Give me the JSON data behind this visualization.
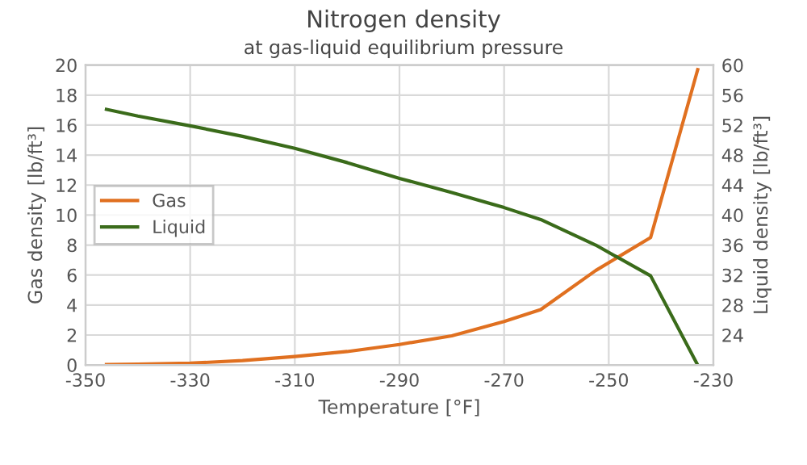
{
  "chart_data": {
    "type": "line",
    "title": "Nitrogen density",
    "subtitle": "at gas-liquid equilibrium pressure",
    "xlabel": "Temperature [°F]",
    "ylabel": "Gas density [lb/ft³]",
    "y2label": "Liquid density [lb/ft³]",
    "x": [
      -346,
      -340,
      -330,
      -320,
      -310,
      -300,
      -290,
      -280,
      -270,
      -263,
      -252.5,
      -242,
      -233
    ],
    "series": [
      {
        "name": "Gas",
        "color": "#e07020",
        "values": [
          0.03,
          0.06,
          0.12,
          0.3,
          0.57,
          0.9,
          1.37,
          1.95,
          2.9,
          3.7,
          6.3,
          8.5,
          19.7
        ]
      },
      {
        "name": "Liquid",
        "color": "#3a6b1a",
        "axis": "y2",
        "values": [
          54.1,
          53.2,
          51.9,
          50.5,
          48.9,
          47.0,
          44.9,
          43.0,
          41.0,
          39.4,
          36.0,
          31.9,
          20
        ]
      }
    ],
    "xlim": [
      -350,
      -230
    ],
    "xticks": [
      -350,
      -330,
      -310,
      -290,
      -270,
      -250,
      -230
    ],
    "ylim": [
      0,
      20
    ],
    "yticks": [
      0,
      2,
      4,
      6,
      8,
      10,
      12,
      14,
      16,
      18,
      20
    ],
    "y2lim": [
      20,
      60
    ],
    "y2ticks": [
      24,
      28,
      32,
      36,
      40,
      44,
      48,
      52,
      56,
      60
    ],
    "grid": true,
    "legend": "left"
  }
}
